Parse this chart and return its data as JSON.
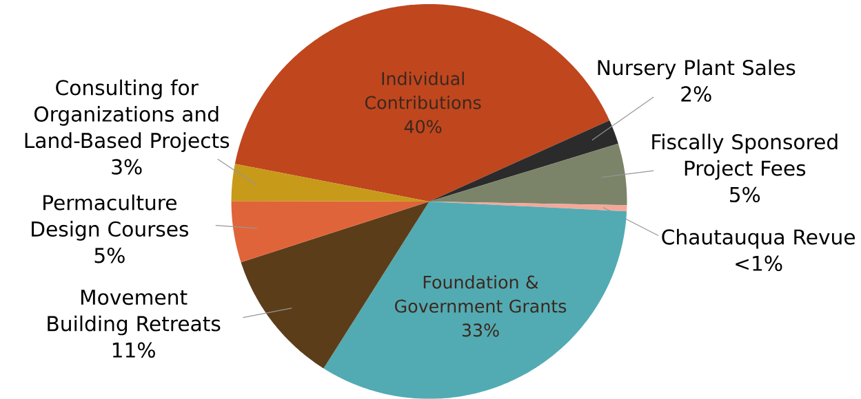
{
  "chart_data": {
    "type": "pie",
    "categories": [
      "Individual Contributions",
      "Nursery Plant Sales",
      "Fiscally Sponsored Project Fees",
      "Chautauqua Revue",
      "Foundation & Government Grants",
      "Movement Building Retreats",
      "Permaculture Design Courses",
      "Consulting for Organizations and Land-Based Projects"
    ],
    "values": [
      40,
      2,
      5,
      0.5,
      33,
      11,
      5,
      3
    ],
    "value_labels": [
      "40%",
      "2%",
      "5%",
      "<1%",
      "33%",
      "11%",
      "5%",
      "3%"
    ],
    "colors": [
      "#c0461e",
      "#2b2b2b",
      "#7b8469",
      "#f4a89a",
      "#52abb3",
      "#5c3d1a",
      "#e0643a",
      "#c79a19"
    ]
  }
}
